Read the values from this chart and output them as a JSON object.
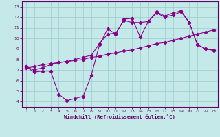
{
  "xlabel": "Windchill (Refroidissement éolien,°C)",
  "bg_color": "#c5e8e8",
  "line_color": "#880088",
  "grid_color": "#99cccc",
  "axis_color": "#660066",
  "xlim": [
    -0.5,
    23.5
  ],
  "ylim": [
    3.5,
    13.5
  ],
  "xticks": [
    0,
    1,
    2,
    3,
    4,
    5,
    6,
    7,
    8,
    9,
    10,
    11,
    12,
    13,
    14,
    15,
    16,
    17,
    18,
    19,
    20,
    21,
    22,
    23
  ],
  "yticks": [
    4,
    5,
    6,
    7,
    8,
    9,
    10,
    11,
    12,
    13
  ],
  "line1_x": [
    0,
    1,
    2,
    3,
    4,
    5,
    6,
    7,
    8,
    9,
    10,
    11,
    12,
    13,
    14,
    15,
    16,
    17,
    18,
    19,
    20,
    21,
    22,
    23
  ],
  "line1_y": [
    7.3,
    6.8,
    6.9,
    6.9,
    4.7,
    4.1,
    4.3,
    4.5,
    6.5,
    9.4,
    10.9,
    10.4,
    11.8,
    11.9,
    10.1,
    11.6,
    12.4,
    12.0,
    12.2,
    12.5,
    11.5,
    9.4,
    9.0,
    8.9
  ],
  "line2_x": [
    0,
    1,
    2,
    3,
    4,
    5,
    6,
    7,
    8,
    9,
    10,
    11,
    12,
    13,
    14,
    15,
    16,
    17,
    18,
    19,
    20,
    21,
    22,
    23
  ],
  "line2_y": [
    7.2,
    7.3,
    7.5,
    7.6,
    7.7,
    7.8,
    7.9,
    8.0,
    8.2,
    8.3,
    8.5,
    8.6,
    8.8,
    8.9,
    9.1,
    9.3,
    9.5,
    9.6,
    9.8,
    10.0,
    10.2,
    10.4,
    10.6,
    10.8
  ],
  "line3_x": [
    0,
    1,
    2,
    3,
    4,
    5,
    6,
    7,
    8,
    9,
    10,
    11,
    12,
    13,
    14,
    15,
    16,
    17,
    18,
    19,
    20,
    21,
    22,
    23
  ],
  "line3_y": [
    7.3,
    7.0,
    7.2,
    7.5,
    7.7,
    7.8,
    8.0,
    8.2,
    8.4,
    9.5,
    10.4,
    10.5,
    11.7,
    11.5,
    11.5,
    11.6,
    12.5,
    12.1,
    12.4,
    12.6,
    11.5,
    9.4,
    9.0,
    8.85
  ]
}
